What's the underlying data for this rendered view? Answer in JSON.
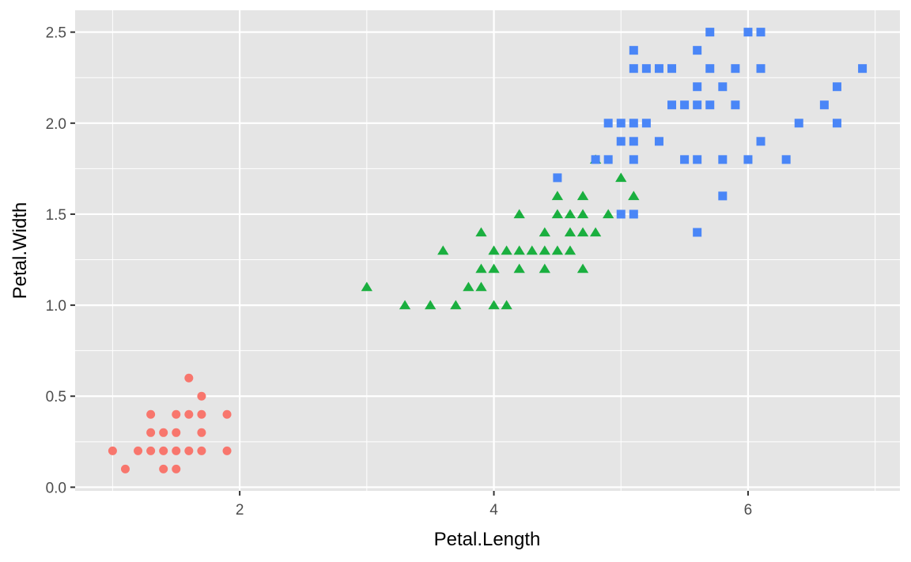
{
  "chart_data": {
    "type": "scatter",
    "title": "",
    "xlabel": "Petal.Length",
    "ylabel": "Petal.Width",
    "xlim": [
      0.705,
      7.195
    ],
    "ylim": [
      -0.02,
      2.62
    ],
    "x_ticks": [
      2,
      4,
      6
    ],
    "x_tick_labels": [
      "2",
      "4",
      "6"
    ],
    "y_ticks": [
      0,
      0.5,
      1,
      1.5,
      2,
      2.5
    ],
    "y_tick_labels": [
      "0.0",
      "0.5",
      "1.0",
      "1.5",
      "2.0",
      "2.5"
    ],
    "grid": true,
    "legend": "none",
    "panel_background": "#e5e5e5",
    "series": [
      {
        "color": "#f8766d",
        "marker": "circle",
        "points": [
          [
            1.0,
            0.2
          ],
          [
            1.1,
            0.1
          ],
          [
            1.2,
            0.2
          ],
          [
            1.3,
            0.2
          ],
          [
            1.3,
            0.3
          ],
          [
            1.3,
            0.4
          ],
          [
            1.4,
            0.1
          ],
          [
            1.4,
            0.2
          ],
          [
            1.4,
            0.3
          ],
          [
            1.5,
            0.1
          ],
          [
            1.5,
            0.2
          ],
          [
            1.5,
            0.3
          ],
          [
            1.5,
            0.4
          ],
          [
            1.6,
            0.2
          ],
          [
            1.6,
            0.4
          ],
          [
            1.6,
            0.6
          ],
          [
            1.7,
            0.2
          ],
          [
            1.7,
            0.3
          ],
          [
            1.7,
            0.4
          ],
          [
            1.7,
            0.5
          ],
          [
            1.9,
            0.2
          ],
          [
            1.9,
            0.4
          ]
        ]
      },
      {
        "color": "#1aaf3f",
        "marker": "triangle",
        "points": [
          [
            3.0,
            1.1
          ],
          [
            3.3,
            1.0
          ],
          [
            3.5,
            1.0
          ],
          [
            3.6,
            1.3
          ],
          [
            3.7,
            1.0
          ],
          [
            3.8,
            1.1
          ],
          [
            3.9,
            1.1
          ],
          [
            3.9,
            1.2
          ],
          [
            3.9,
            1.4
          ],
          [
            4.0,
            1.0
          ],
          [
            4.0,
            1.2
          ],
          [
            4.0,
            1.3
          ],
          [
            4.1,
            1.0
          ],
          [
            4.1,
            1.3
          ],
          [
            4.2,
            1.2
          ],
          [
            4.2,
            1.3
          ],
          [
            4.2,
            1.5
          ],
          [
            4.3,
            1.3
          ],
          [
            4.4,
            1.2
          ],
          [
            4.4,
            1.3
          ],
          [
            4.4,
            1.4
          ],
          [
            4.5,
            1.3
          ],
          [
            4.5,
            1.5
          ],
          [
            4.5,
            1.6
          ],
          [
            4.6,
            1.3
          ],
          [
            4.6,
            1.4
          ],
          [
            4.6,
            1.5
          ],
          [
            4.7,
            1.2
          ],
          [
            4.7,
            1.4
          ],
          [
            4.7,
            1.5
          ],
          [
            4.7,
            1.6
          ],
          [
            4.8,
            1.4
          ],
          [
            4.8,
            1.8
          ],
          [
            4.9,
            1.5
          ],
          [
            5.0,
            1.7
          ],
          [
            5.1,
            1.6
          ]
        ]
      },
      {
        "color": "#4a86f7",
        "marker": "square",
        "points": [
          [
            4.5,
            1.7
          ],
          [
            4.8,
            1.8
          ],
          [
            4.9,
            1.8
          ],
          [
            4.9,
            2.0
          ],
          [
            5.0,
            1.5
          ],
          [
            5.0,
            1.9
          ],
          [
            5.0,
            2.0
          ],
          [
            5.1,
            1.5
          ],
          [
            5.1,
            1.8
          ],
          [
            5.1,
            1.9
          ],
          [
            5.1,
            2.0
          ],
          [
            5.1,
            2.3
          ],
          [
            5.1,
            2.4
          ],
          [
            5.2,
            2.0
          ],
          [
            5.2,
            2.3
          ],
          [
            5.3,
            1.9
          ],
          [
            5.3,
            2.3
          ],
          [
            5.4,
            2.1
          ],
          [
            5.4,
            2.3
          ],
          [
            5.5,
            1.8
          ],
          [
            5.5,
            2.1
          ],
          [
            5.6,
            1.4
          ],
          [
            5.6,
            1.8
          ],
          [
            5.6,
            2.1
          ],
          [
            5.6,
            2.2
          ],
          [
            5.6,
            2.4
          ],
          [
            5.7,
            2.1
          ],
          [
            5.7,
            2.3
          ],
          [
            5.7,
            2.5
          ],
          [
            5.8,
            1.6
          ],
          [
            5.8,
            1.8
          ],
          [
            5.8,
            2.2
          ],
          [
            5.9,
            2.1
          ],
          [
            5.9,
            2.3
          ],
          [
            6.0,
            1.8
          ],
          [
            6.0,
            2.5
          ],
          [
            6.1,
            1.9
          ],
          [
            6.1,
            2.3
          ],
          [
            6.1,
            2.5
          ],
          [
            6.3,
            1.8
          ],
          [
            6.4,
            2.0
          ],
          [
            6.6,
            2.1
          ],
          [
            6.7,
            2.0
          ],
          [
            6.7,
            2.2
          ],
          [
            6.9,
            2.3
          ]
        ]
      }
    ]
  }
}
